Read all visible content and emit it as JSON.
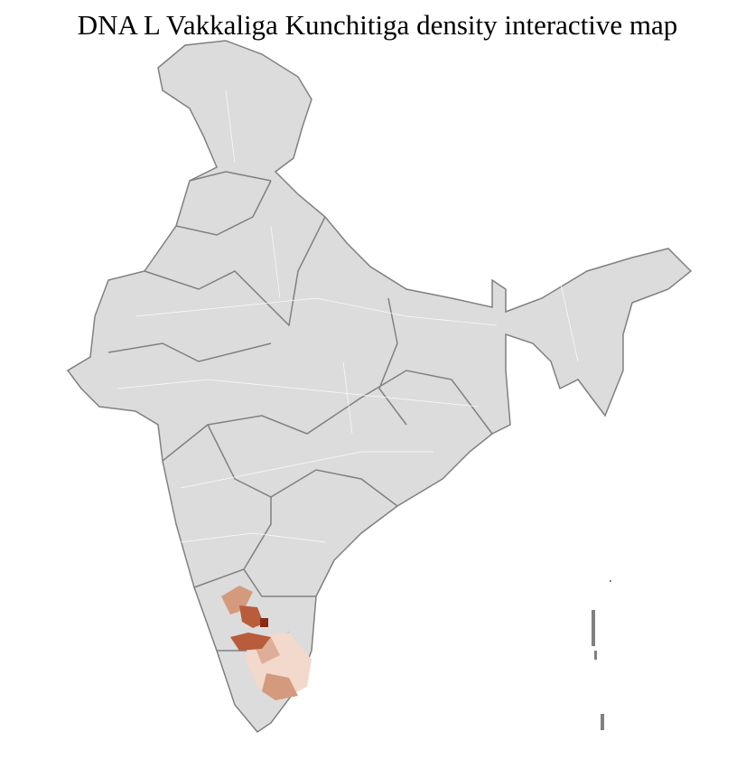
{
  "title": "DNA L Vakkaliga Kunchitiga density interactive map",
  "colors": {
    "land": "#dcdcdc",
    "state_border": "#808080",
    "district_border": "#ffffff",
    "density_low": "#f2d9cc",
    "density_mid": "#d49a7e",
    "density_high": "#b85c3c",
    "density_max": "#8b2a10"
  }
}
